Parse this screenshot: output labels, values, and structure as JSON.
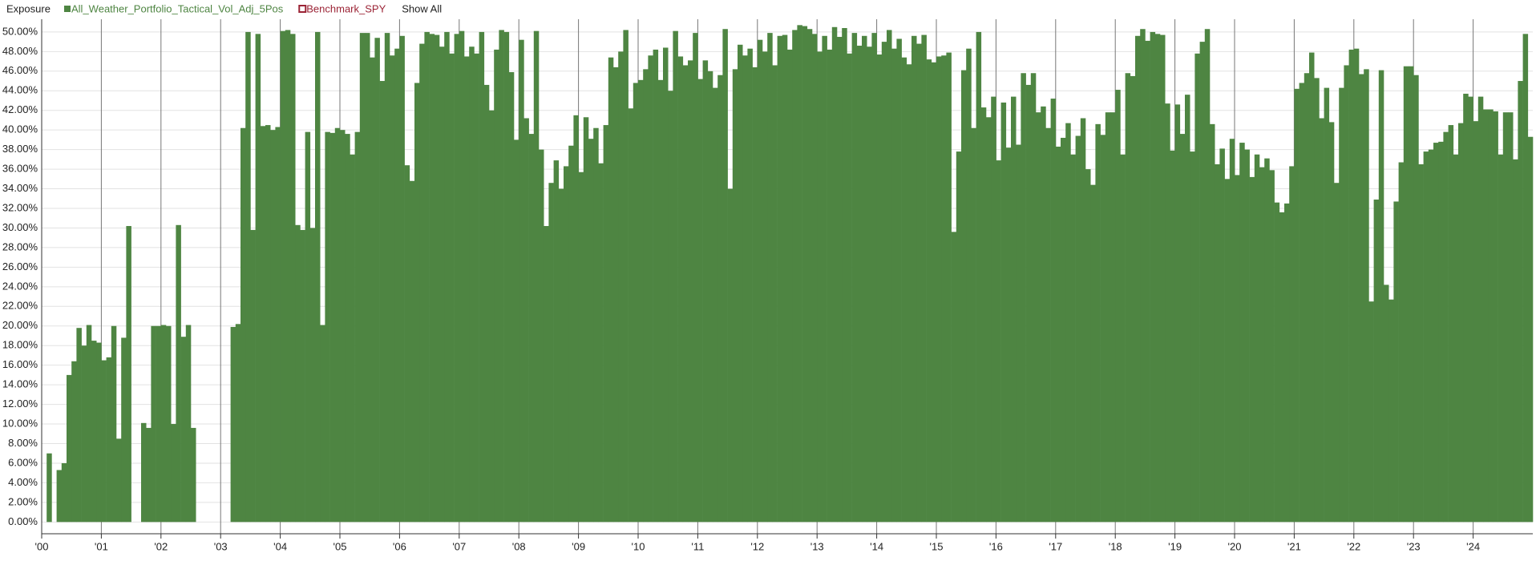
{
  "chart_data": {
    "type": "bar",
    "title": "Exposure",
    "show_all_label": "Show All",
    "series": [
      {
        "name": "All_Weather_Portfolio_Tactical_Vol_Adj_5Pos",
        "color": "#4e8542",
        "visible": true,
        "values": [
          0,
          7,
          0,
          5.3,
          6,
          15,
          16.4,
          19.8,
          18,
          20.1,
          18.5,
          18.3,
          16.5,
          16.8,
          20,
          8.5,
          18.8,
          30.2,
          0,
          0,
          10.1,
          9.6,
          20,
          20,
          20.1,
          20,
          10,
          30.3,
          18.9,
          20.1,
          9.6,
          0,
          0,
          0,
          0,
          0,
          0,
          0,
          19.9,
          20.2,
          40.2,
          50,
          29.8,
          49.8,
          40.4,
          40.5,
          40,
          40.3,
          50.1,
          50.2,
          49.8,
          30.3,
          29.8,
          39.8,
          30,
          50,
          20.1,
          39.8,
          39.7,
          40.2,
          40,
          39.6,
          37.5,
          39.8,
          49.9,
          49.9,
          47.4,
          49.4,
          45,
          49.9,
          47.6,
          48.3,
          49.6,
          36.4,
          34.8,
          44.8,
          48.8,
          50,
          49.8,
          49.7,
          48.5,
          50,
          47.8,
          49.8,
          50.1,
          47.5,
          48.5,
          47.8,
          50,
          44.6,
          42,
          48.2,
          50.2,
          50,
          45.9,
          39,
          49.2,
          41.2,
          39.6,
          50.1,
          38,
          30.2,
          34.6,
          36.9,
          34,
          36.3,
          38.4,
          41.5,
          35.7,
          41.3,
          39.1,
          40.2,
          36.6,
          40.5,
          47.4,
          46.4,
          48,
          50.2,
          42.2,
          44.8,
          45.1,
          46.2,
          47.6,
          48.2,
          45.1,
          48.4,
          44,
          50.1,
          47.5,
          46.6,
          47.1,
          49.9,
          45.2,
          47.1,
          46,
          44.3,
          45.6,
          50.3,
          34,
          46.2,
          48.7,
          47.6,
          48.3,
          46.4,
          49.2,
          48,
          49.9,
          46.6,
          49.6,
          49.7,
          48.2,
          50.2,
          50.7,
          50.6,
          50.3,
          49.8,
          48,
          49.6,
          48.2,
          50.5,
          49.5,
          50.4,
          47.8,
          49.9,
          48.6,
          49.6,
          48.5,
          49.9,
          47.7,
          49,
          50.2,
          48.3,
          49.3,
          47.4,
          46.7,
          49.6,
          48.8,
          49.7,
          47.2,
          46.9,
          47.5,
          47.6,
          47.9,
          29.6,
          37.8,
          46.1,
          48.3,
          40.2,
          50,
          42.3,
          41.3,
          43.4,
          36.9,
          42.8,
          38.2,
          43.4,
          38.5,
          45.8,
          44.6,
          45.8,
          41.8,
          42.4,
          40.2,
          43.2,
          38.3,
          39.2,
          40.7,
          37.5,
          39.4,
          41.2,
          36,
          34.4,
          40.6,
          39.5,
          41.8,
          41.8,
          44.1,
          37.5,
          45.8,
          45.5,
          49.6,
          50.3,
          49.1,
          50,
          49.8,
          49.7,
          42.7,
          37.9,
          42.6,
          39.6,
          43.6,
          37.8,
          47.8,
          49,
          50.3,
          40.6,
          36.5,
          38.1,
          35,
          39.1,
          35.4,
          38.7,
          38,
          35.2,
          37.5,
          36.2,
          37.1,
          35.9,
          32.6,
          31.6,
          32.5,
          36.3,
          44.2,
          44.8,
          45.8,
          47.9,
          45.3,
          41.2,
          44.3,
          40.8,
          34.6,
          44.3,
          46.6,
          48.2,
          48.3,
          45.7,
          46.2,
          22.5,
          32.9,
          46.1,
          24.2,
          22.7,
          32.7,
          36.7,
          46.5,
          46.5,
          45.6,
          36.5,
          37.8,
          38,
          38.7,
          38.8,
          39.8,
          40.5,
          37.5,
          40.7,
          43.7,
          43.4,
          40.9,
          43.4,
          42.1,
          42.1,
          41.9,
          37.5,
          41.8,
          41.8,
          37,
          45,
          49.8,
          39.3
        ]
      },
      {
        "name": "Benchmark_SPY",
        "color": "#9b2335",
        "visible": false
      }
    ],
    "xlim": [
      2000,
      2025
    ],
    "xticks": [
      {
        "value": 2000,
        "label": "'00"
      },
      {
        "value": 2001,
        "label": "'01"
      },
      {
        "value": 2002,
        "label": "'02"
      },
      {
        "value": 2003,
        "label": "'03"
      },
      {
        "value": 2004,
        "label": "'04"
      },
      {
        "value": 2005,
        "label": "'05"
      },
      {
        "value": 2006,
        "label": "'06"
      },
      {
        "value": 2007,
        "label": "'07"
      },
      {
        "value": 2008,
        "label": "'08"
      },
      {
        "value": 2009,
        "label": "'09"
      },
      {
        "value": 2010,
        "label": "'10"
      },
      {
        "value": 2011,
        "label": "'11"
      },
      {
        "value": 2012,
        "label": "'12"
      },
      {
        "value": 2013,
        "label": "'13"
      },
      {
        "value": 2014,
        "label": "'14"
      },
      {
        "value": 2015,
        "label": "'15"
      },
      {
        "value": 2016,
        "label": "'16"
      },
      {
        "value": 2017,
        "label": "'17"
      },
      {
        "value": 2018,
        "label": "'18"
      },
      {
        "value": 2019,
        "label": "'19"
      },
      {
        "value": 2020,
        "label": "'20"
      },
      {
        "value": 2021,
        "label": "'21"
      },
      {
        "value": 2022,
        "label": "'22"
      },
      {
        "value": 2023,
        "label": "'23"
      },
      {
        "value": 2024,
        "label": "'24"
      }
    ],
    "ylim": [
      -1.2,
      51.3
    ],
    "yticks": [
      {
        "value": 0,
        "label": "0.00%"
      },
      {
        "value": 2,
        "label": "2.00%"
      },
      {
        "value": 4,
        "label": "4.00%"
      },
      {
        "value": 6,
        "label": "6.00%"
      },
      {
        "value": 8,
        "label": "8.00%"
      },
      {
        "value": 10,
        "label": "10.00%"
      },
      {
        "value": 12,
        "label": "12.00%"
      },
      {
        "value": 14,
        "label": "14.00%"
      },
      {
        "value": 16,
        "label": "16.00%"
      },
      {
        "value": 18,
        "label": "18.00%"
      },
      {
        "value": 20,
        "label": "20.00%"
      },
      {
        "value": 22,
        "label": "22.00%"
      },
      {
        "value": 24,
        "label": "24.00%"
      },
      {
        "value": 26,
        "label": "26.00%"
      },
      {
        "value": 28,
        "label": "28.00%"
      },
      {
        "value": 30,
        "label": "30.00%"
      },
      {
        "value": 32,
        "label": "32.00%"
      },
      {
        "value": 34,
        "label": "34.00%"
      },
      {
        "value": 36,
        "label": "36.00%"
      },
      {
        "value": 38,
        "label": "38.00%"
      },
      {
        "value": 40,
        "label": "40.00%"
      },
      {
        "value": 42,
        "label": "42.00%"
      },
      {
        "value": 44,
        "label": "44.00%"
      },
      {
        "value": 46,
        "label": "46.00%"
      },
      {
        "value": 48,
        "label": "48.00%"
      },
      {
        "value": 50,
        "label": "50.00%"
      }
    ],
    "grid": true
  }
}
